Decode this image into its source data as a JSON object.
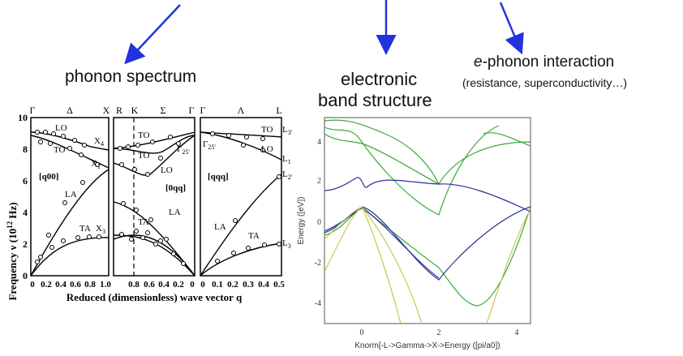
{
  "headings": {
    "phonon": "phonon spectrum",
    "electronic_line1": "electronic",
    "electronic_line2": "band structure",
    "ephonon_prefix": "e",
    "ephonon_rest": "-phonon interaction",
    "ephonon_sub": "(resistance, superconductivity…)"
  },
  "colors": {
    "arrow": "#2233dd",
    "blue_band": "#2e2e9e",
    "green_band": "#3aaa3a",
    "yellow_band": "#c8c850"
  },
  "phonon": {
    "ylabel_text": "Frequency ν (10",
    "ylabel_exp": "12",
    "ylabel_unit": " Hz)",
    "xlabel": "Reduced (dimensionless) wave vector q",
    "yticks": [
      "0",
      "2",
      "4",
      "6",
      "8",
      "10"
    ],
    "panel1": {
      "top_labels": [
        "Γ",
        "Δ",
        "X"
      ],
      "direction": "[q00]",
      "xticks": [
        "0",
        "0.2",
        "0.4",
        "0.6",
        "0.8",
        "1.0"
      ],
      "branch_labels": [
        "LO",
        "TO",
        "X",
        "X",
        "LA",
        "TA",
        "X"
      ],
      "branch_subs": [
        "",
        "",
        "4",
        "1",
        "",
        "",
        "3"
      ]
    },
    "panel2": {
      "top_labels": [
        "R",
        "K",
        "Σ",
        "Γ"
      ],
      "direction": "[0qq]",
      "xticks": [
        "0.8",
        "0.6",
        "0.4",
        "0.2",
        "0"
      ],
      "branch_labels": [
        "TO",
        "TO",
        "Γ",
        "LO",
        "LA",
        "TA"
      ],
      "branch_subs": [
        "",
        "",
        "25'",
        "",
        "",
        ""
      ]
    },
    "panel3": {
      "top_labels": [
        "Γ",
        "Λ",
        "L"
      ],
      "direction": "[qqq]",
      "xticks": [
        "0",
        "0.1",
        "0.2",
        "0.3",
        "0.4",
        "0.5"
      ],
      "branch_labels": [
        "Γ",
        "TO",
        "LO",
        "LA",
        "TA",
        "L",
        "L",
        "L",
        "L"
      ],
      "branch_subs": [
        "25'",
        "",
        "",
        "",
        "",
        "3'",
        "1",
        "2'",
        "3"
      ]
    }
  },
  "bands": {
    "ylabel": "Energy ([eV])",
    "xlabel": "Knorm[-L->Gamma->X->Energy ([pi/a0])",
    "yticks": [
      "4",
      "2",
      "0",
      "-2",
      "-4"
    ],
    "xticks": [
      "0",
      "2",
      "4"
    ]
  }
}
